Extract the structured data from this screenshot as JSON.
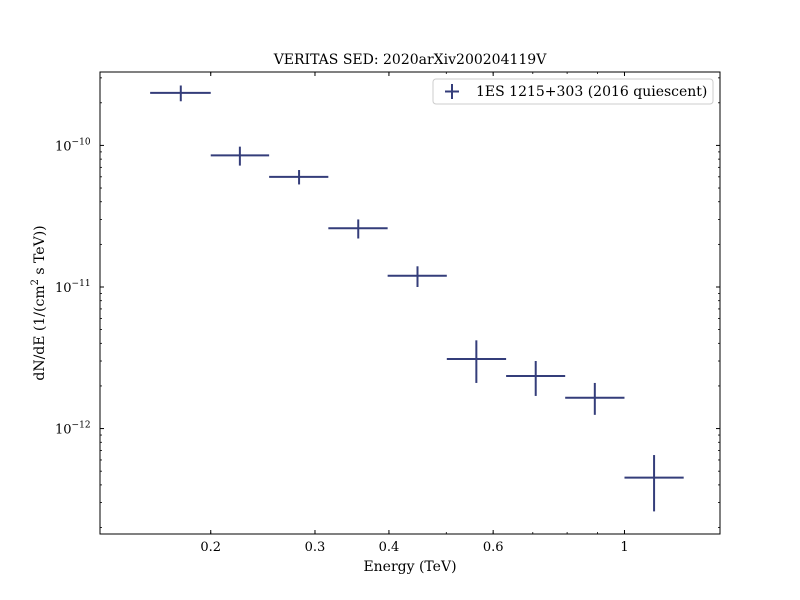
{
  "chart_data": {
    "type": "scatter",
    "title": "VERITAS SED: 2020arXiv200204119V",
    "xlabel": "Energy (TeV)",
    "ylabel_main": "dN/dE (1/(cm",
    "ylabel_sup": "2",
    "ylabel_tail": " s TeV))",
    "x_scale": "log",
    "y_scale": "log",
    "xlim": [
      0.13,
      1.45
    ],
    "ylim": [
      1.8e-13,
      3.3e-10
    ],
    "x_ticks": [
      {
        "value": 0.2,
        "label": "0.2"
      },
      {
        "value": 0.3,
        "label": "0.3"
      },
      {
        "value": 0.4,
        "label": "0.4"
      },
      {
        "value": 0.6,
        "label": "0.6"
      },
      {
        "value": 1.0,
        "label": "1"
      }
    ],
    "y_ticks": [
      {
        "value": 1e-12,
        "base": "10",
        "exp": "−12"
      },
      {
        "value": 1e-11,
        "base": "10",
        "exp": "−11"
      },
      {
        "value": 1e-10,
        "base": "10",
        "exp": "−10"
      }
    ],
    "legend_position": "upper right",
    "series": [
      {
        "name": "1ES 1215+303 (2016 quiescent)",
        "color": "#343d7a",
        "points": [
          {
            "x": 0.178,
            "xlo": 0.158,
            "xhi": 0.2,
            "y": 2.35e-10,
            "ylo": 2.05e-10,
            "yhi": 2.65e-10
          },
          {
            "x": 0.224,
            "xlo": 0.2,
            "xhi": 0.251,
            "y": 8.5e-11,
            "ylo": 7.2e-11,
            "yhi": 9.8e-11
          },
          {
            "x": 0.282,
            "xlo": 0.251,
            "xhi": 0.316,
            "y": 6e-11,
            "ylo": 5.3e-11,
            "yhi": 6.7e-11
          },
          {
            "x": 0.355,
            "xlo": 0.316,
            "xhi": 0.398,
            "y": 2.6e-11,
            "ylo": 2.2e-11,
            "yhi": 3e-11
          },
          {
            "x": 0.447,
            "xlo": 0.398,
            "xhi": 0.501,
            "y": 1.2e-11,
            "ylo": 1e-11,
            "yhi": 1.4e-11
          },
          {
            "x": 0.562,
            "xlo": 0.501,
            "xhi": 0.631,
            "y": 3.1e-12,
            "ylo": 2.1e-12,
            "yhi": 4.2e-12
          },
          {
            "x": 0.708,
            "xlo": 0.631,
            "xhi": 0.794,
            "y": 2.35e-12,
            "ylo": 1.7e-12,
            "yhi": 3e-12
          },
          {
            "x": 0.891,
            "xlo": 0.794,
            "xhi": 1.0,
            "y": 1.65e-12,
            "ylo": 1.25e-12,
            "yhi": 2.1e-12
          },
          {
            "x": 1.122,
            "xlo": 1.0,
            "xhi": 1.259,
            "y": 4.5e-13,
            "ylo": 2.6e-13,
            "yhi": 6.5e-13
          }
        ]
      }
    ]
  }
}
